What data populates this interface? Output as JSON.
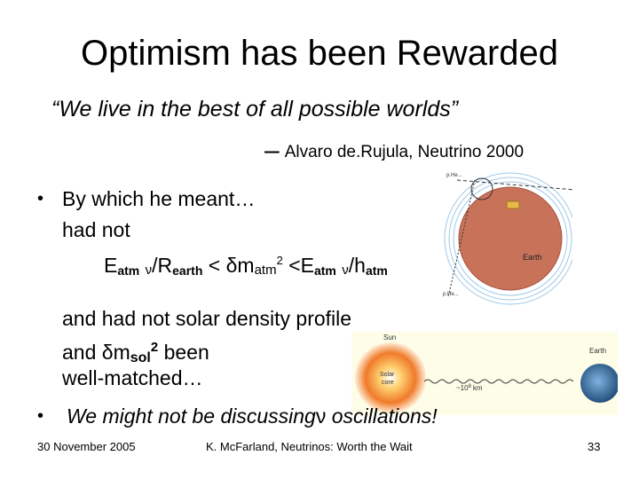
{
  "slide": {
    "title": "Optimism has been Rewarded",
    "quote": "“We live in the best of all possible worlds”",
    "attribution": "Alvaro de.Rujula, Neutrino 2000",
    "bullet1": {
      "line1": "By which he meant…",
      "line2": "had not",
      "line3": {
        "e1": "E",
        "e1_sub": "atm",
        "nu1": "ν",
        "slash1": "/R",
        "r_sub": "earth",
        "lt1": " < ",
        "dm": "δm",
        "dm_sub": "atm",
        "dm_sup": "2",
        "lt2": " <E",
        "e2_sub": "atm",
        "nu2": "ν",
        "slash2": "/h",
        "h_sub": "atm"
      },
      "line4": "and had not solar density profile",
      "line5": {
        "pre": "and ",
        "dm": "δm",
        "dm_sub": "sol",
        "dm_sup": "2",
        "post": " been"
      },
      "line6": "well-matched…"
    },
    "bullet2": {
      "pre": "We might not be discussing",
      "nu": "ν",
      "post": " oscillations!"
    },
    "earth_figure": {
      "label_earth": "Earth",
      "label_top": "p.He...",
      "label_bottom": "p.He..."
    },
    "sun_figure": {
      "label_sun": "Sun",
      "label_solar": "Solar",
      "label_core": "core",
      "label_distance": "~10",
      "label_distance_exp": "8",
      "label_distance_unit": "km",
      "label_earth": "Earth"
    }
  },
  "footer": {
    "date": "30 November 2005",
    "center": "K. McFarland, Neutrinos: Worth the Wait",
    "page": "33"
  }
}
